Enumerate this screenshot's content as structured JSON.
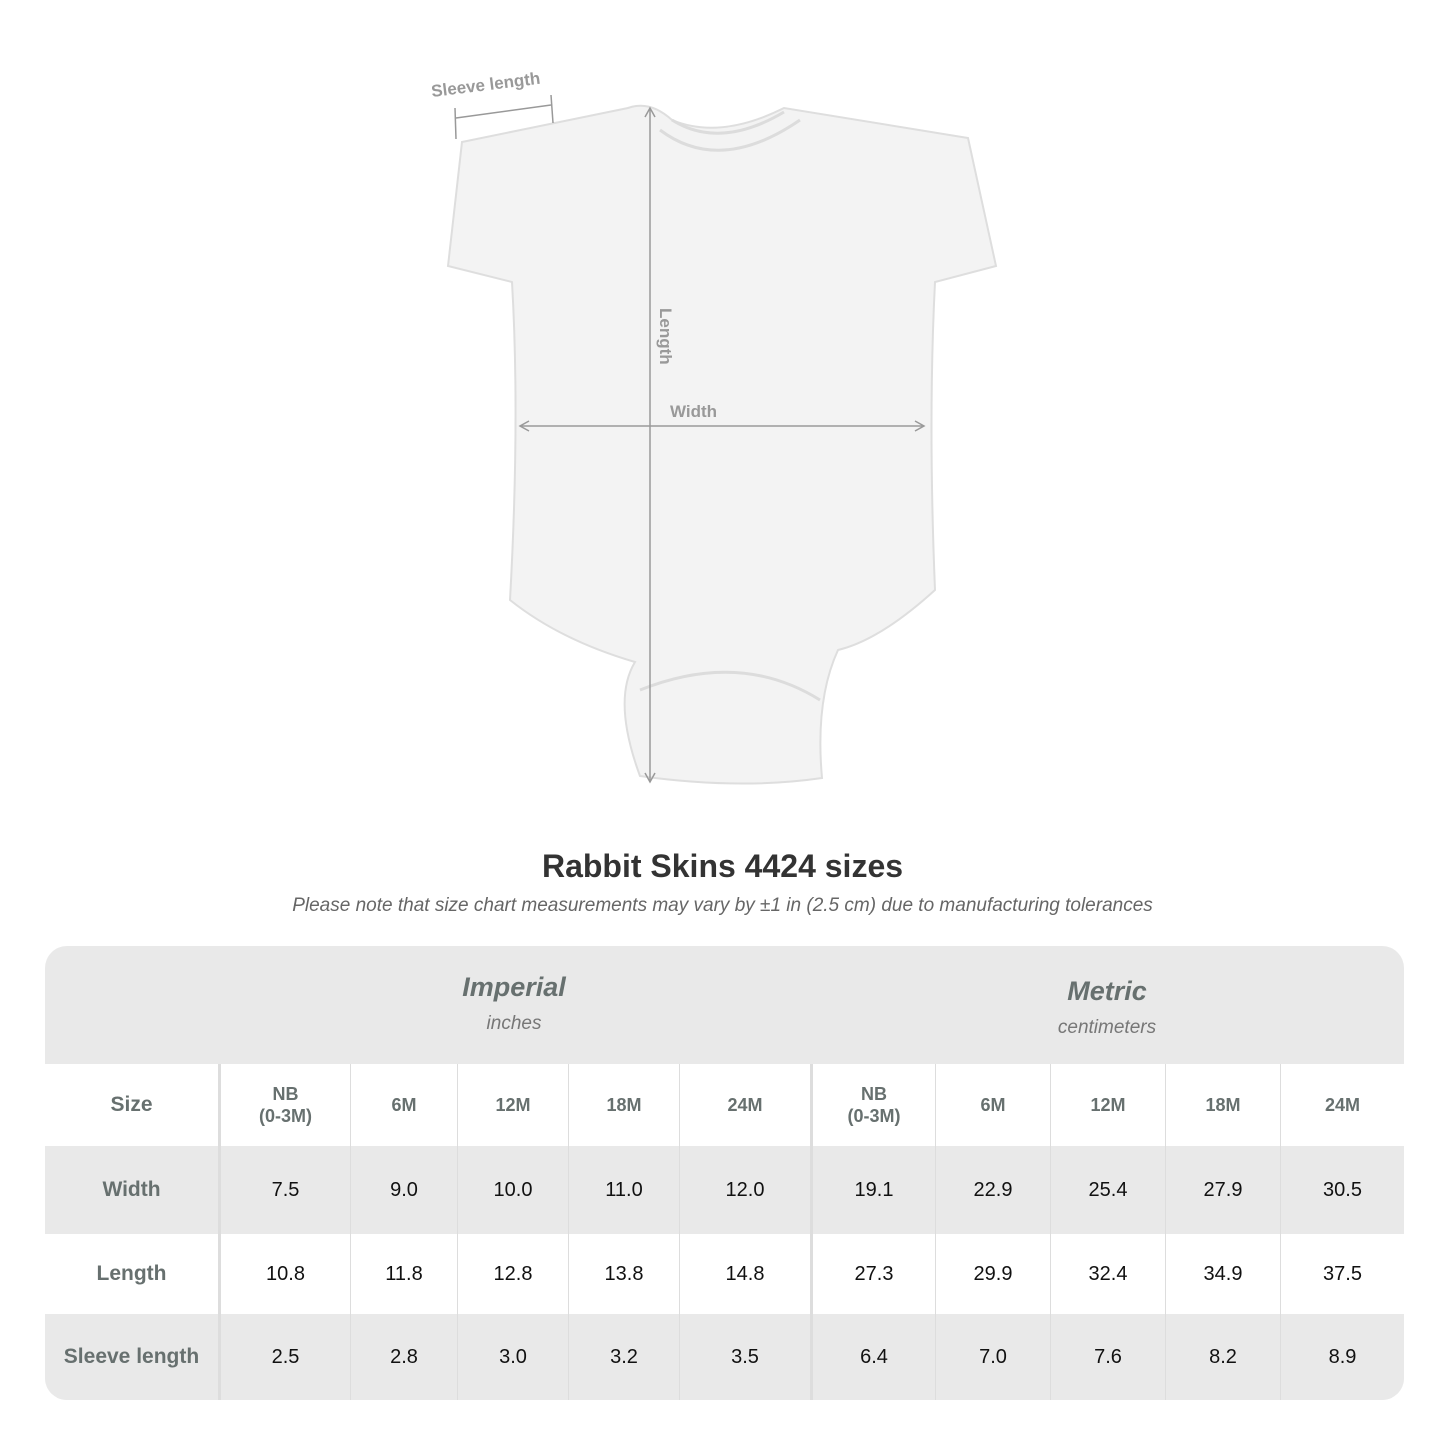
{
  "diagram": {
    "labels": {
      "sleeve": "Sleeve length",
      "length": "Length",
      "width": "Width"
    },
    "garment_color": "#f2f2f2",
    "measure_line_color": "#999999"
  },
  "header": {
    "title": "Rabbit Skins 4424 sizes",
    "note": "Please note that size chart measurements may vary by ±1 in (2.5 cm) due to manufacturing tolerances"
  },
  "table": {
    "imperial": {
      "label": "Imperial",
      "unit": "inches"
    },
    "metric": {
      "label": "Metric",
      "unit": "centimeters"
    },
    "size_label": "Size",
    "sizes": [
      "NB\n(0-3M)",
      "6M",
      "12M",
      "18M",
      "24M"
    ],
    "rows": [
      {
        "label": "Width",
        "imperial": [
          "7.5",
          "9.0",
          "10.0",
          "11.0",
          "12.0"
        ],
        "metric": [
          "19.1",
          "22.9",
          "25.4",
          "27.9",
          "30.5"
        ]
      },
      {
        "label": "Length",
        "imperial": [
          "10.8",
          "11.8",
          "12.8",
          "13.8",
          "14.8"
        ],
        "metric": [
          "27.3",
          "29.9",
          "32.4",
          "34.9",
          "37.5"
        ]
      },
      {
        "label": "Sleeve length",
        "imperial": [
          "2.5",
          "2.8",
          "3.0",
          "3.2",
          "3.5"
        ],
        "metric": [
          "6.4",
          "7.0",
          "7.6",
          "8.2",
          "8.9"
        ]
      }
    ]
  }
}
